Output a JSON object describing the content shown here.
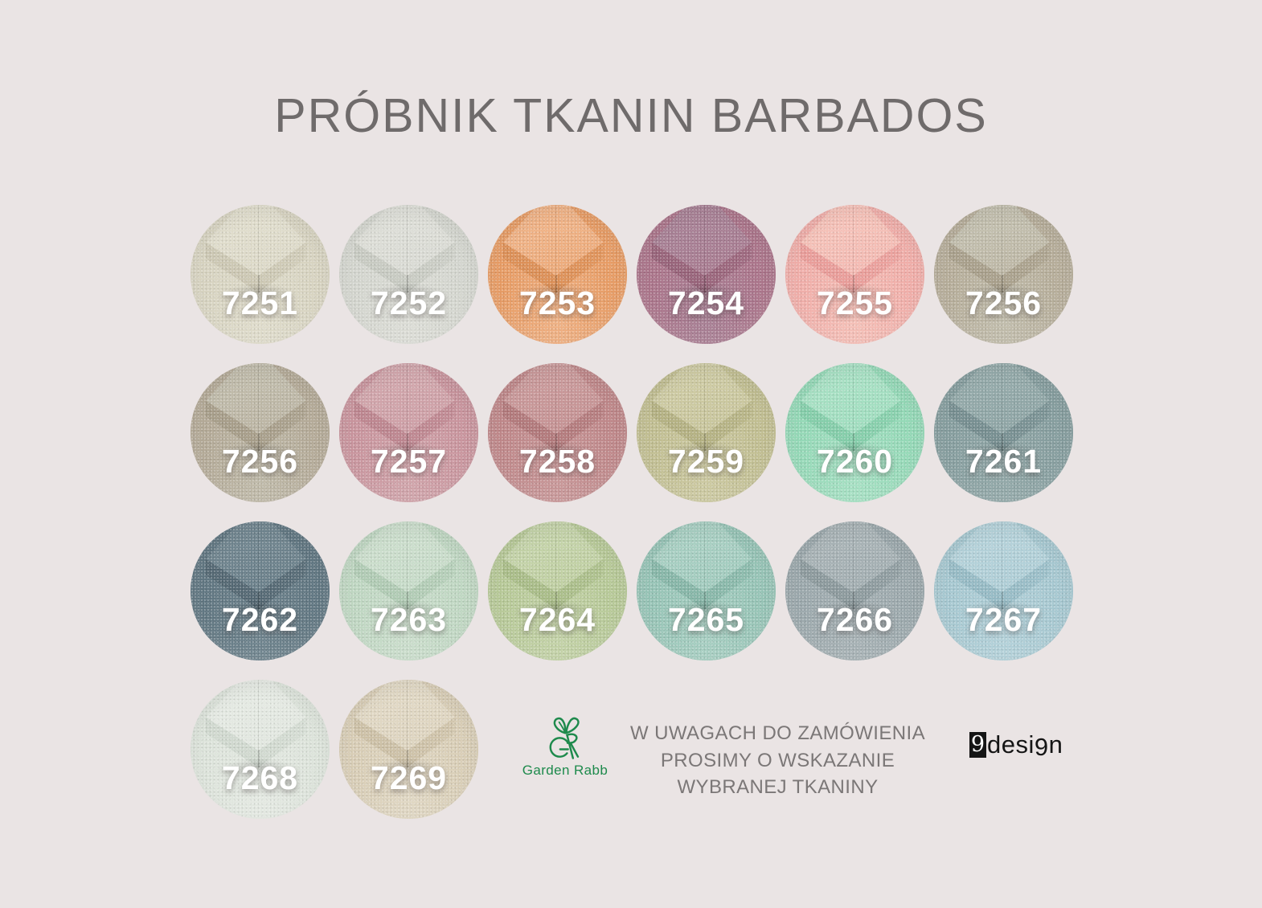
{
  "title": "PRÓBNIK TKANIN BARBADOS",
  "colors": {
    "background": "#eae4e4",
    "title": "#6f6b6b",
    "note": "#7b7777",
    "garden_rabb_green": "#1e8a4c",
    "ninedesign_black": "#151515",
    "swatch_code_text": "#ffffff"
  },
  "swatches": [
    {
      "code": "7251",
      "base": "#d7d3c0",
      "top": "#dfdccb",
      "side": "#c7c2ad"
    },
    {
      "code": "7252",
      "base": "#d3d5ce",
      "top": "#dcddd6",
      "side": "#c2c5bc"
    },
    {
      "code": "7253",
      "base": "#e79b63",
      "top": "#efb184",
      "side": "#d7894f"
    },
    {
      "code": "7254",
      "base": "#aa7389",
      "top": "#a67e93",
      "side": "#8e5a71"
    },
    {
      "code": "7255",
      "base": "#f0ada8",
      "top": "#f5c0b7",
      "side": "#e69592"
    },
    {
      "code": "7256",
      "base": "#b5ac98",
      "top": "#c1bdac",
      "side": "#a29984"
    },
    {
      "code": "7256",
      "base": "#b3a996",
      "top": "#bfbaa9",
      "side": "#a09782"
    },
    {
      "code": "7257",
      "base": "#c8939c",
      "top": "#d0a4aa",
      "side": "#b77e88"
    },
    {
      "code": "7258",
      "base": "#be8688",
      "top": "#c89798",
      "side": "#ab7173"
    },
    {
      "code": "7259",
      "base": "#c0bd90",
      "top": "#ccc9a1",
      "side": "#adaa7a"
    },
    {
      "code": "7260",
      "base": "#93d8b6",
      "top": "#a6e0c3",
      "side": "#7cc8a3"
    },
    {
      "code": "7261",
      "base": "#849c9d",
      "top": "#92a8a8",
      "side": "#6e8689"
    },
    {
      "code": "7262",
      "base": "#5f7580",
      "top": "#6e838d",
      "side": "#4d606b"
    },
    {
      "code": "7263",
      "base": "#bed6c1",
      "top": "#caddcb",
      "side": "#a9c5ad"
    },
    {
      "code": "7264",
      "base": "#b6c896",
      "top": "#c3d2a7",
      "side": "#a2b680"
    },
    {
      "code": "7265",
      "base": "#95c3b5",
      "top": "#a6cec1",
      "side": "#7eafa0"
    },
    {
      "code": "7266",
      "base": "#99a6aa",
      "top": "#a6b1b4",
      "side": "#849295"
    },
    {
      "code": "7267",
      "base": "#a5c7d0",
      "top": "#b3d1d9",
      "side": "#8eb4bf"
    },
    {
      "code": "7268",
      "base": "#dce3da",
      "top": "#e4e9e2",
      "side": "#cbd4ca"
    },
    {
      "code": "7269",
      "base": "#d8cdb5",
      "top": "#e0d7c3",
      "side": "#c7ba9f"
    }
  ],
  "footer": {
    "garden_rabb": {
      "label": "Garden Rabb"
    },
    "note_lines": [
      "W UWAGACH DO ZAMÓWIENIA",
      "PROSIMY O WSKAZANIE",
      "WYBRANEJ TKANINY"
    ],
    "ninedesign": {
      "box_char": "9",
      "word_start": "desi",
      "word_g": "9",
      "word_end": "n"
    }
  }
}
